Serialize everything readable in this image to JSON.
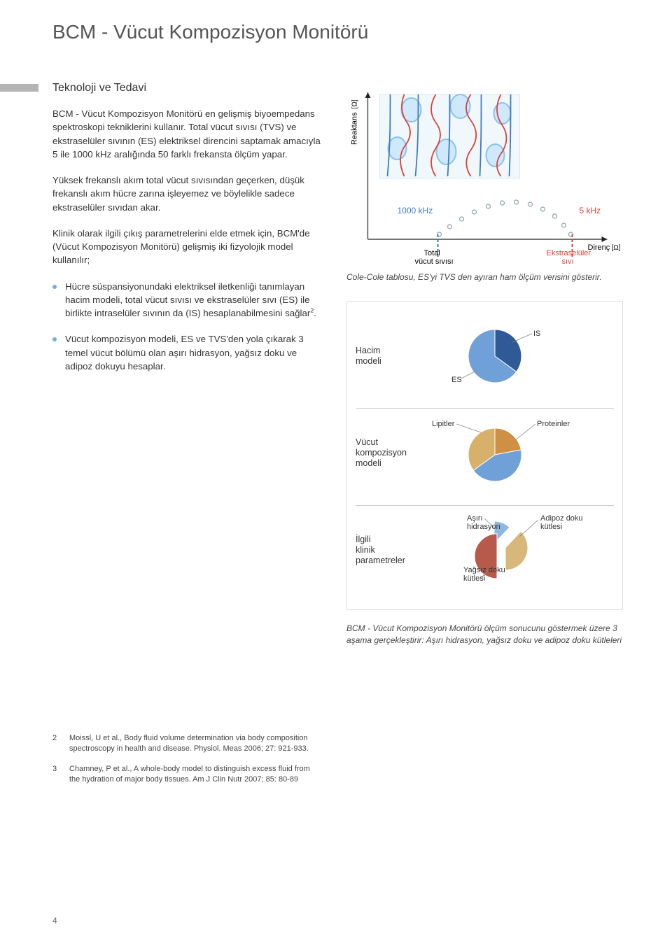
{
  "page": {
    "title": "BCM - Vücut Kompozisyon Monitörü",
    "section": "Teknoloji ve Tedavi",
    "pageNumber": "4"
  },
  "body": {
    "p1": "BCM - Vücut Kompozisyon Monitörü  en gelişmiş biyoempedans spektroskopi  tekniklerini  kullanır. Total vücut sıvısı (TVS) ve ekstraselüler sıvının (ES) elektriksel direncini saptamak amacıyla 5 ile 1000 kHz aralığında 50 farklı frekansta ölçüm yapar.",
    "p2": "Yüksek frekanslı akım  total vücut sıvısından geçerken, düşük frekanslı akım hücre zarına işleyemez ve böylelikle sadece  ekstraselüler sıvıdan akar.",
    "p3": "Klinik olarak ilgili çıkış parametrelerini elde etmek için, BCM'de (Vücut Kompozisyon Monitörü)  gelişmiş iki fizyolojik model kullanılır;",
    "bullet1": "Hücre süspansiyonundaki  elektriksel iletkenliği tanımlayan hacim modeli, total vücut sıvısı ve ekstraselüler sıvı (ES) ile birlikte intraselüler sıvının da (IS) hesaplanabilmesini sağlar",
    "bullet1_sup": "2",
    "bullet1_tail": ".",
    "bullet2": "Vücut kompozisyon modeli, ES ve TVS'den yola çıkarak 3 temel vücut bölümü olan aşırı hidrasyon, yağsız doku ve adipoz dokuyu hesaplar."
  },
  "coleCole": {
    "yAxis": "Reaktans",
    "yUnit": "[Ω]",
    "xAxis": "Direnç",
    "xUnit": "[Ω]",
    "highFreq": "1000 kHz",
    "lowFreq": "5 kHz",
    "tvsLabel1": "Total",
    "tvsLabel2": "vücut sıvısı",
    "esLabel1": "Ekstraselüler",
    "esLabel2": "sıvı",
    "caption": "Cole-Cole tablosu, ES'yi TVS den ayıran ham ölçüm verisini gösterir.",
    "colors": {
      "hfLine": "#3e7bbf",
      "lfLine": "#d9433b",
      "cell": "#cfe8fb",
      "cellStroke": "#8ac3ec",
      "arc": "#8ba0a6"
    }
  },
  "charts": {
    "hacim": {
      "label": "Hacim\nmodeli",
      "es": {
        "name": "ES",
        "value": 65,
        "color": "#6fa1d8"
      },
      "is": {
        "name": "IS",
        "value": 35,
        "color": "#2f5a95"
      }
    },
    "vucut": {
      "label": "Vücut\nkompozisyon\nmodeli",
      "lip": {
        "name": "Lipitler",
        "value": 35,
        "color": "#d7b16a"
      },
      "pro": {
        "name": "Proteinler",
        "value": 22,
        "color": "#cf8f45"
      },
      "wat": {
        "name": "",
        "value": 43,
        "color": "#6fa1d8"
      }
    },
    "klinik": {
      "label": "İlgili\nklinik\nparametreler",
      "oh": {
        "name": "Aşırı\nhidrasyon",
        "value_pct": 12,
        "color": "#8db7e3"
      },
      "ltm": {
        "name": "Yağsız doku\nkütlesi",
        "value_pct": 50,
        "color": "#b75a4b"
      },
      "atm": {
        "name": "Adipoz doku\nkütlesi",
        "value_pct": 38,
        "color": "#d8b87a"
      }
    },
    "caption": "BCM - Vücut Kompozisyon Monitörü ölçüm sonucunu  göstermek üzere 3 aşama  gerçekleştirir: Aşırı hidrasyon, yağsız doku ve adipoz doku kütleleri"
  },
  "refs": {
    "r2num": "2",
    "r2": "Moissl, U et al., Body fluid volume determination via body composition spectroscopy in health and disease. Physiol. Meas 2006; 27: 921-933.",
    "r3num": "3",
    "r3": "Chamney, P et al., A whole-body model to distinguish excess fluid from the hydration of major body tissues. Am J Clin Nutr 2007; 85: 80-89"
  }
}
